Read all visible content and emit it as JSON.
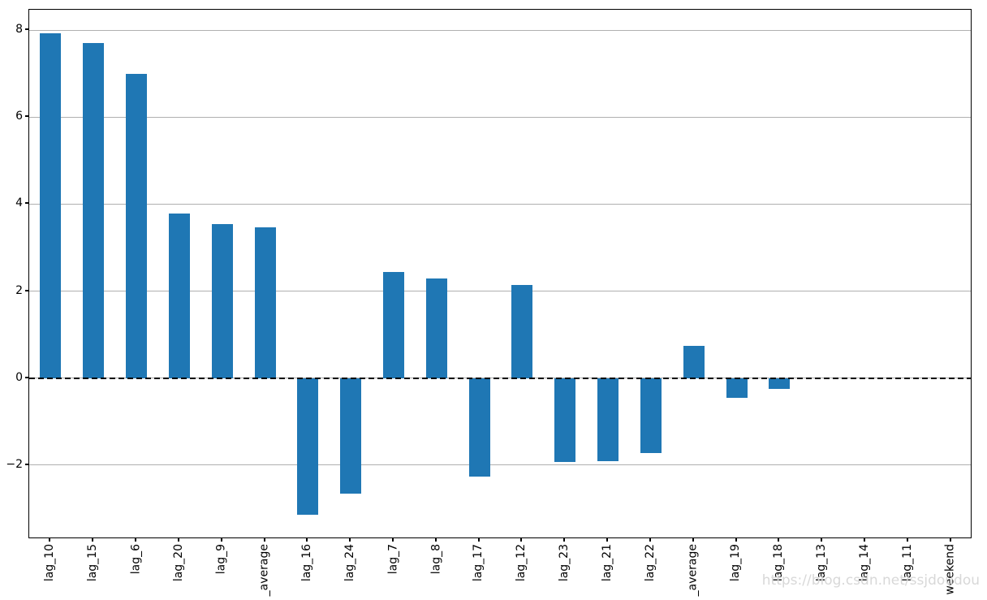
{
  "watermark": "https://blog.csdn.net/ssjdoudou",
  "chart_data": {
    "type": "bar",
    "title": "",
    "xlabel": "",
    "ylabel": "",
    "categories": [
      "lag_10",
      "lag_15",
      "lag_6",
      "lag_20",
      "lag_9",
      "_average",
      "lag_16",
      "lag_24",
      "lag_7",
      "lag_8",
      "lag_17",
      "lag_12",
      "lag_23",
      "lag_21",
      "lag_22",
      "_average",
      "lag_19",
      "lag_18",
      "lag_13",
      "lag_14",
      "lag_11",
      "weekend"
    ],
    "values": [
      7.93,
      7.7,
      7.0,
      3.78,
      3.55,
      3.47,
      -3.14,
      -2.66,
      2.44,
      2.3,
      -2.27,
      2.14,
      -1.93,
      -1.9,
      -1.72,
      0.75,
      -0.45,
      -0.25,
      0,
      0,
      0,
      0
    ],
    "ylim": [
      -3.7,
      8.47
    ],
    "yticks": [
      8,
      6,
      4,
      2,
      0,
      -2
    ],
    "ytick_labels": [
      "8",
      "6",
      "4",
      "2",
      "0",
      "−2"
    ],
    "bar_color": "#1f77b4",
    "grid": true,
    "gridline_color": "#b0b0b0",
    "zero_line": {
      "style": "dashed",
      "color": "#000000",
      "y": 0
    },
    "legend": null,
    "xtick_rotation_deg": 90
  }
}
